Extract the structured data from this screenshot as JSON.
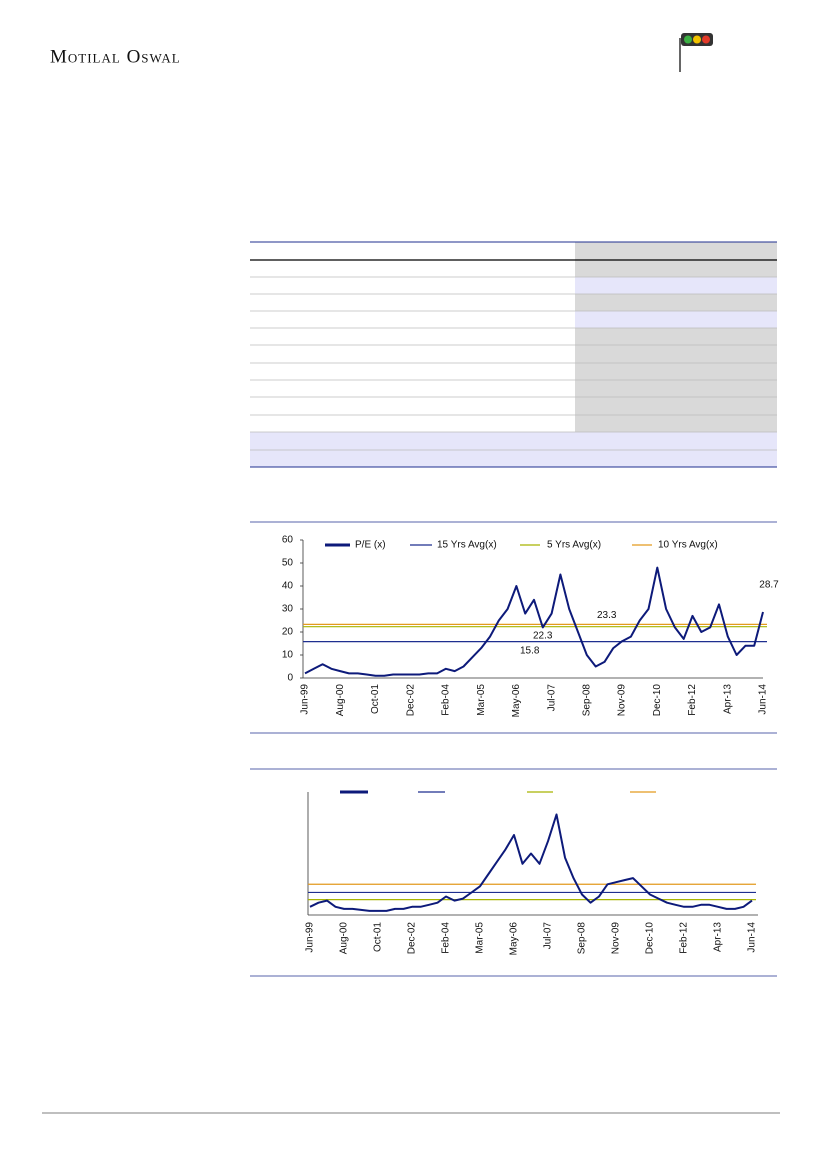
{
  "header": {
    "brand": "Motilal Oswal"
  },
  "chart_data": [
    {
      "type": "line",
      "categories": [
        "Jun-99",
        null,
        null,
        null,
        "Aug-00",
        null,
        null,
        null,
        "Oct-01",
        null,
        null,
        null,
        "Dec-02",
        null,
        null,
        null,
        "Feb-04",
        null,
        null,
        null,
        "Mar-05",
        null,
        null,
        null,
        "May-06",
        null,
        null,
        null,
        "Jul-07",
        null,
        null,
        null,
        "Sep-08",
        null,
        null,
        null,
        "Nov-09",
        null,
        null,
        null,
        "Dec-10",
        null,
        null,
        null,
        "Feb-12",
        null,
        null,
        null,
        "Apr-13",
        null,
        null,
        null,
        "Jun-14"
      ],
      "series": [
        {
          "name": "P/E (x)",
          "color": "#0d1a7a",
          "values": [
            2,
            4,
            6,
            4,
            3,
            2,
            2,
            1.5,
            1,
            1,
            1.5,
            1.5,
            1.5,
            1.5,
            2,
            2,
            4,
            3,
            5,
            9,
            13,
            18,
            25,
            30,
            40,
            28,
            34,
            22,
            28,
            45,
            30,
            20,
            10,
            5,
            7,
            13,
            16,
            18,
            25,
            30,
            48,
            30,
            22,
            17,
            27,
            20,
            22,
            32,
            18,
            10,
            14,
            14,
            28.7
          ]
        }
      ],
      "reference_lines": [
        {
          "name": "15 Yrs Avg(x)",
          "color": "#1f2f8f",
          "value": 15.8
        },
        {
          "name": "5 Yrs Avg(x)",
          "color": "#a8b400",
          "value": 22.3
        },
        {
          "name": "10 Yrs Avg(x)",
          "color": "#e39a1e",
          "value": 23.3
        }
      ],
      "ylim": [
        0,
        60
      ],
      "yticks": [
        0,
        10,
        20,
        30,
        40,
        50,
        60
      ]
    },
    {
      "type": "line",
      "categories": [
        "Jun-99",
        null,
        null,
        null,
        "Aug-00",
        null,
        null,
        null,
        "Oct-01",
        null,
        null,
        null,
        "Dec-02",
        null,
        null,
        null,
        "Feb-04",
        null,
        null,
        null,
        "Mar-05",
        null,
        null,
        null,
        "May-06",
        null,
        null,
        null,
        "Jul-07",
        null,
        null,
        null,
        "Sep-08",
        null,
        null,
        null,
        "Nov-09",
        null,
        null,
        null,
        "Dec-10",
        null,
        null,
        null,
        "Feb-12",
        null,
        null,
        null,
        "Apr-13",
        null,
        null,
        null,
        "Jun-14"
      ],
      "series": [
        {
          "color": "#0d1a7a",
          "values": [
            0.4,
            0.6,
            0.7,
            0.4,
            0.3,
            0.3,
            0.25,
            0.2,
            0.2,
            0.2,
            0.3,
            0.3,
            0.4,
            0.4,
            0.5,
            0.6,
            0.9,
            0.7,
            0.8,
            1.1,
            1.4,
            2.0,
            2.6,
            3.2,
            3.9,
            2.5,
            3.0,
            2.5,
            3.6,
            4.9,
            2.8,
            1.8,
            1.0,
            0.6,
            0.9,
            1.5,
            1.6,
            1.7,
            1.8,
            1.4,
            1.0,
            0.8,
            0.6,
            0.5,
            0.4,
            0.4,
            0.5,
            0.5,
            0.4,
            0.3,
            0.3,
            0.4,
            0.7
          ]
        }
      ],
      "reference_lines": [
        {
          "color": "#1f2f8f",
          "value": 1.1
        },
        {
          "color": "#a8b400",
          "value": 0.75
        },
        {
          "color": "#e39a1e",
          "value": 1.5
        }
      ],
      "ylim": [
        0,
        6
      ]
    }
  ]
}
